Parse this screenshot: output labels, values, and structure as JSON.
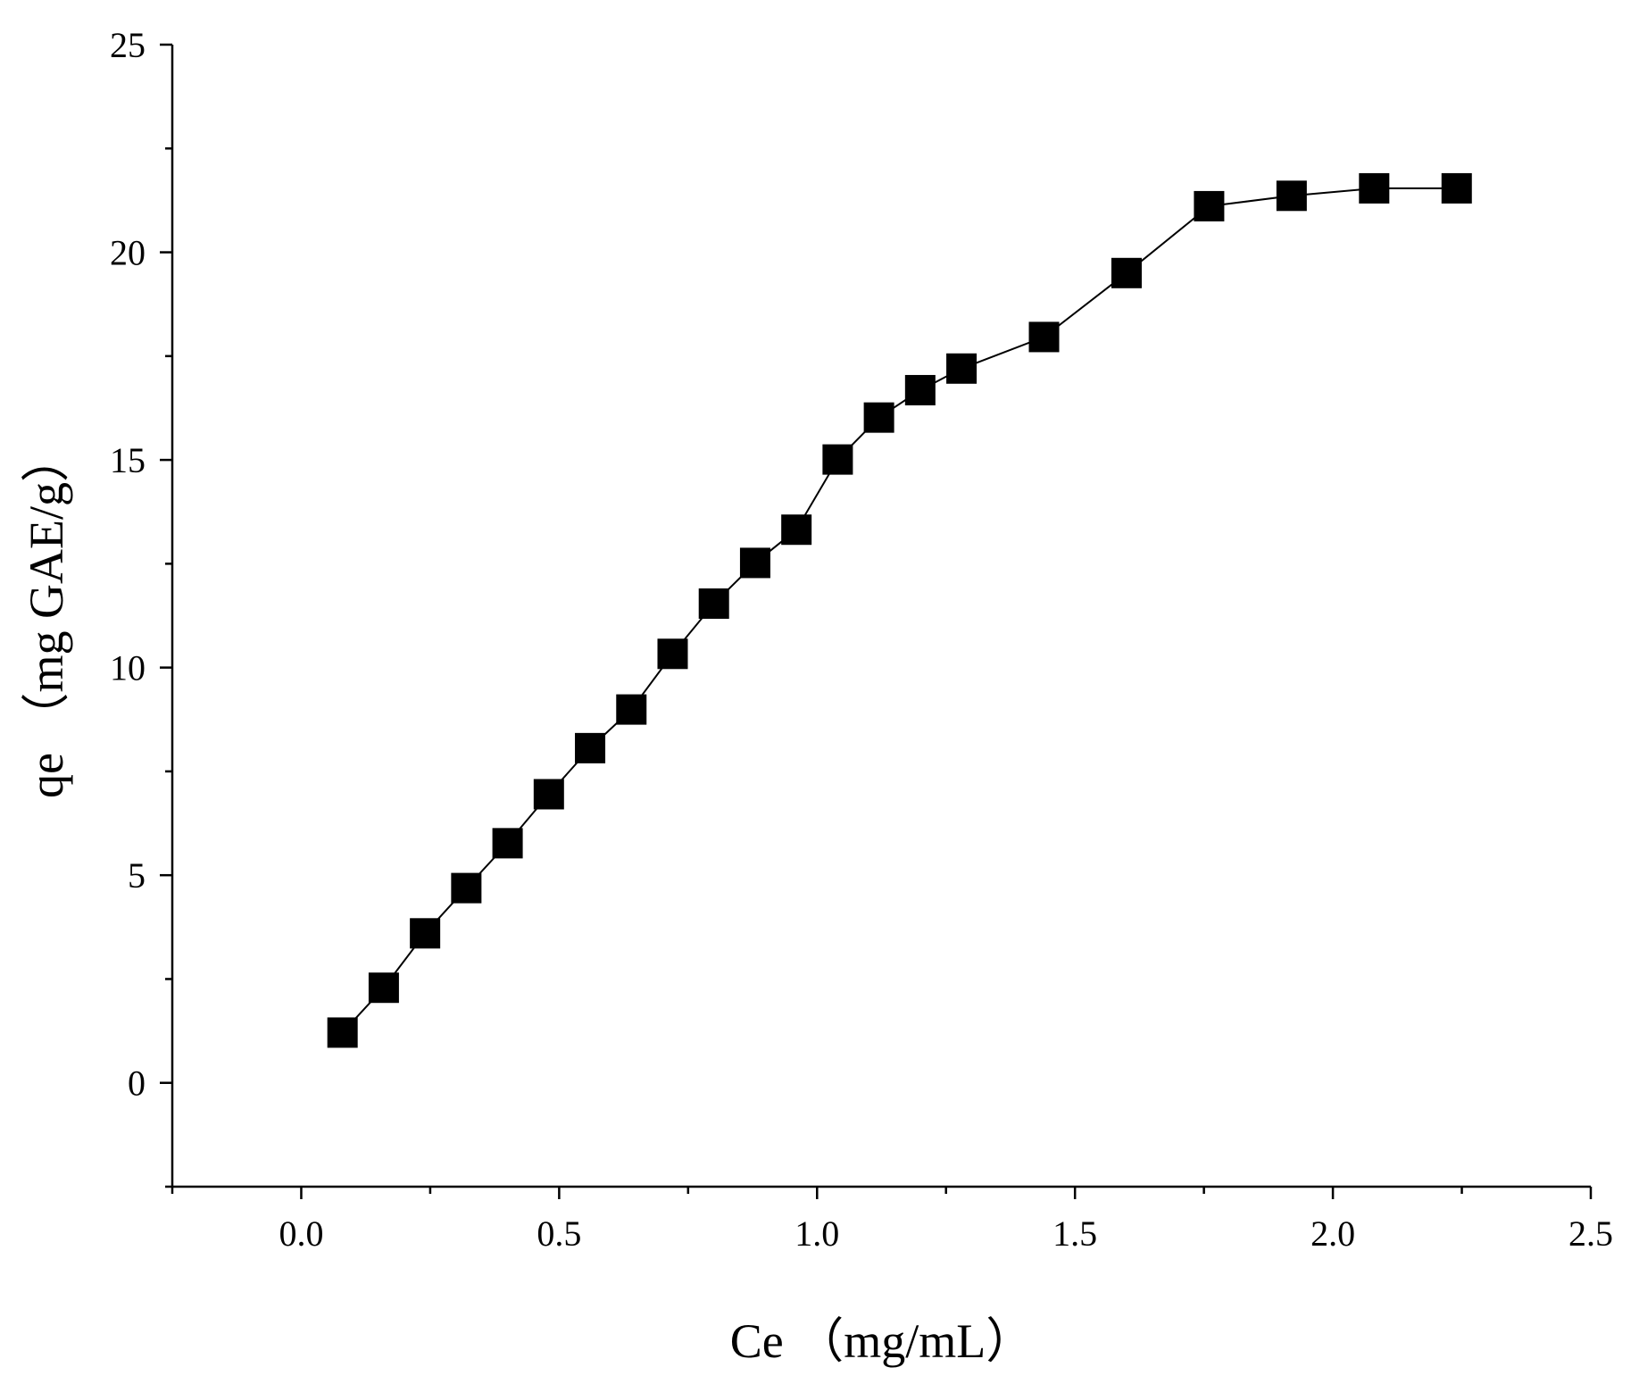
{
  "chart_data": {
    "type": "line",
    "x_label": "Ce （mg/mL）",
    "y_label": "qe （mg GAE/g）",
    "x": [
      0.08,
      0.16,
      0.24,
      0.32,
      0.4,
      0.48,
      0.56,
      0.64,
      0.72,
      0.8,
      0.88,
      0.96,
      1.04,
      1.12,
      1.2,
      1.28,
      1.44,
      1.6,
      1.76,
      1.92,
      2.08,
      2.24
    ],
    "series": [
      {
        "name": "qe",
        "color": "#000000",
        "values": [
          1.21,
          2.29,
          3.6,
          4.69,
          5.77,
          6.95,
          8.06,
          8.99,
          10.33,
          11.54,
          12.52,
          13.32,
          15.01,
          16.02,
          16.68,
          17.2,
          17.96,
          19.5,
          21.11,
          21.36,
          21.54,
          21.54
        ]
      }
    ],
    "xlim": [
      -0.25,
      2.5
    ],
    "xticks": [
      {
        "value": 0,
        "label": "0.0"
      },
      0.5,
      {
        "value": 1,
        "label": "1.0"
      },
      1.5,
      {
        "value": 2,
        "label": "2.0"
      },
      2.5
    ],
    "ylim": [
      -2.5,
      25
    ],
    "yticks": [
      0,
      5,
      10,
      15,
      20,
      25
    ],
    "marker": "square",
    "grid": false
  }
}
